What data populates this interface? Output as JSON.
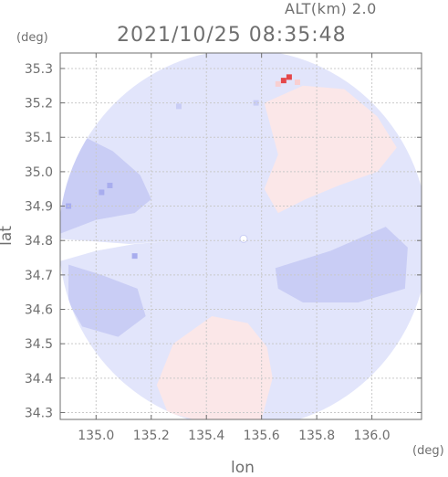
{
  "header": {
    "altitude_label": "ALT(km) 2.0",
    "timestamp": "2021/10/25 08:35:48",
    "y_unit": "(deg)",
    "x_unit": "(deg)"
  },
  "axes": {
    "xlabel": "lon",
    "ylabel": "lat",
    "xlim": [
      134.87,
      136.18
    ],
    "ylim": [
      34.28,
      35.345
    ],
    "xticks": [
      135.0,
      135.2,
      135.4,
      135.6,
      135.8,
      136.0
    ],
    "xtick_labels": [
      "135.0",
      "135.2",
      "135.4",
      "135.6",
      "135.8",
      "136.0"
    ],
    "yticks": [
      34.3,
      34.4,
      34.5,
      34.6,
      34.7,
      34.8,
      34.9,
      35.0,
      35.1,
      35.2,
      35.3
    ],
    "ytick_labels": [
      "34.3",
      "34.4",
      "34.5",
      "34.6",
      "34.7",
      "34.8",
      "34.9",
      "35.0",
      "35.1",
      "35.2",
      "35.3"
    ],
    "grid": true
  },
  "colors": {
    "frame": "#6f6f6f",
    "grid": "#c9c9c9",
    "text": "#6f6f6f",
    "base_blue": "#e2e5fb",
    "medium_blue": "#c9cdf5",
    "strong_blue": "#a8adee",
    "light_red": "#fbe7e8",
    "medium_red": "#f8cfd1",
    "strong_red": "#e4474a"
  },
  "radar": {
    "center_lon": 135.535,
    "center_lat": 34.805,
    "range_lon": 0.67,
    "range_lat": 0.55,
    "regions": [
      {
        "name": "northeast-positive",
        "color": "light_red",
        "points": [
          [
            135.61,
            35.2
          ],
          [
            135.75,
            35.25
          ],
          [
            135.9,
            35.24
          ],
          [
            136.02,
            35.16
          ],
          [
            136.09,
            35.07
          ],
          [
            136.02,
            35.0
          ],
          [
            135.88,
            34.96
          ],
          [
            135.76,
            34.92
          ],
          [
            135.66,
            34.88
          ],
          [
            135.61,
            34.95
          ],
          [
            135.66,
            35.05
          ]
        ]
      },
      {
        "name": "south-positive",
        "color": "light_red",
        "points": [
          [
            135.28,
            34.5
          ],
          [
            135.42,
            34.58
          ],
          [
            135.55,
            34.56
          ],
          [
            135.62,
            34.49
          ],
          [
            135.64,
            34.4
          ],
          [
            135.6,
            34.28
          ],
          [
            135.45,
            34.26
          ],
          [
            135.26,
            34.3
          ],
          [
            135.22,
            34.38
          ]
        ]
      },
      {
        "name": "west-negative",
        "color": "medium_blue",
        "points": [
          [
            134.87,
            34.82
          ],
          [
            134.87,
            35.05
          ],
          [
            134.96,
            35.1
          ],
          [
            135.06,
            35.06
          ],
          [
            135.16,
            34.99
          ],
          [
            135.2,
            34.92
          ],
          [
            135.14,
            34.88
          ],
          [
            135.0,
            34.86
          ]
        ]
      },
      {
        "name": "southwest-negative",
        "color": "medium_blue",
        "points": [
          [
            134.9,
            34.73
          ],
          [
            135.02,
            34.7
          ],
          [
            135.15,
            34.66
          ],
          [
            135.18,
            34.58
          ],
          [
            135.08,
            34.52
          ],
          [
            134.95,
            34.55
          ],
          [
            134.9,
            34.62
          ]
        ]
      },
      {
        "name": "east-negative",
        "color": "medium_blue",
        "points": [
          [
            135.65,
            34.72
          ],
          [
            135.85,
            34.77
          ],
          [
            136.05,
            34.84
          ],
          [
            136.13,
            34.78
          ],
          [
            136.12,
            34.66
          ],
          [
            135.95,
            34.62
          ],
          [
            135.75,
            34.62
          ],
          [
            135.66,
            34.66
          ]
        ]
      }
    ],
    "cutout": {
      "name": "beam-blockage",
      "points": [
        [
          134.87,
          34.74
        ],
        [
          135.0,
          34.77
        ],
        [
          135.14,
          34.79
        ],
        [
          135.3,
          34.8
        ],
        [
          135.12,
          34.79
        ],
        [
          134.87,
          34.805
        ]
      ]
    },
    "speckles": [
      {
        "lon": 135.68,
        "lat": 35.265,
        "color": "strong_red"
      },
      {
        "lon": 135.7,
        "lat": 35.275,
        "color": "strong_red"
      },
      {
        "lon": 135.66,
        "lat": 35.255,
        "color": "medium_red"
      },
      {
        "lon": 135.73,
        "lat": 35.26,
        "color": "medium_red"
      },
      {
        "lon": 135.02,
        "lat": 34.94,
        "color": "strong_blue"
      },
      {
        "lon": 134.9,
        "lat": 34.9,
        "color": "strong_blue"
      },
      {
        "lon": 135.05,
        "lat": 34.96,
        "color": "strong_blue"
      },
      {
        "lon": 135.14,
        "lat": 34.755,
        "color": "strong_blue"
      },
      {
        "lon": 135.3,
        "lat": 35.19,
        "color": "medium_blue"
      },
      {
        "lon": 135.58,
        "lat": 35.2,
        "color": "medium_blue"
      }
    ]
  }
}
